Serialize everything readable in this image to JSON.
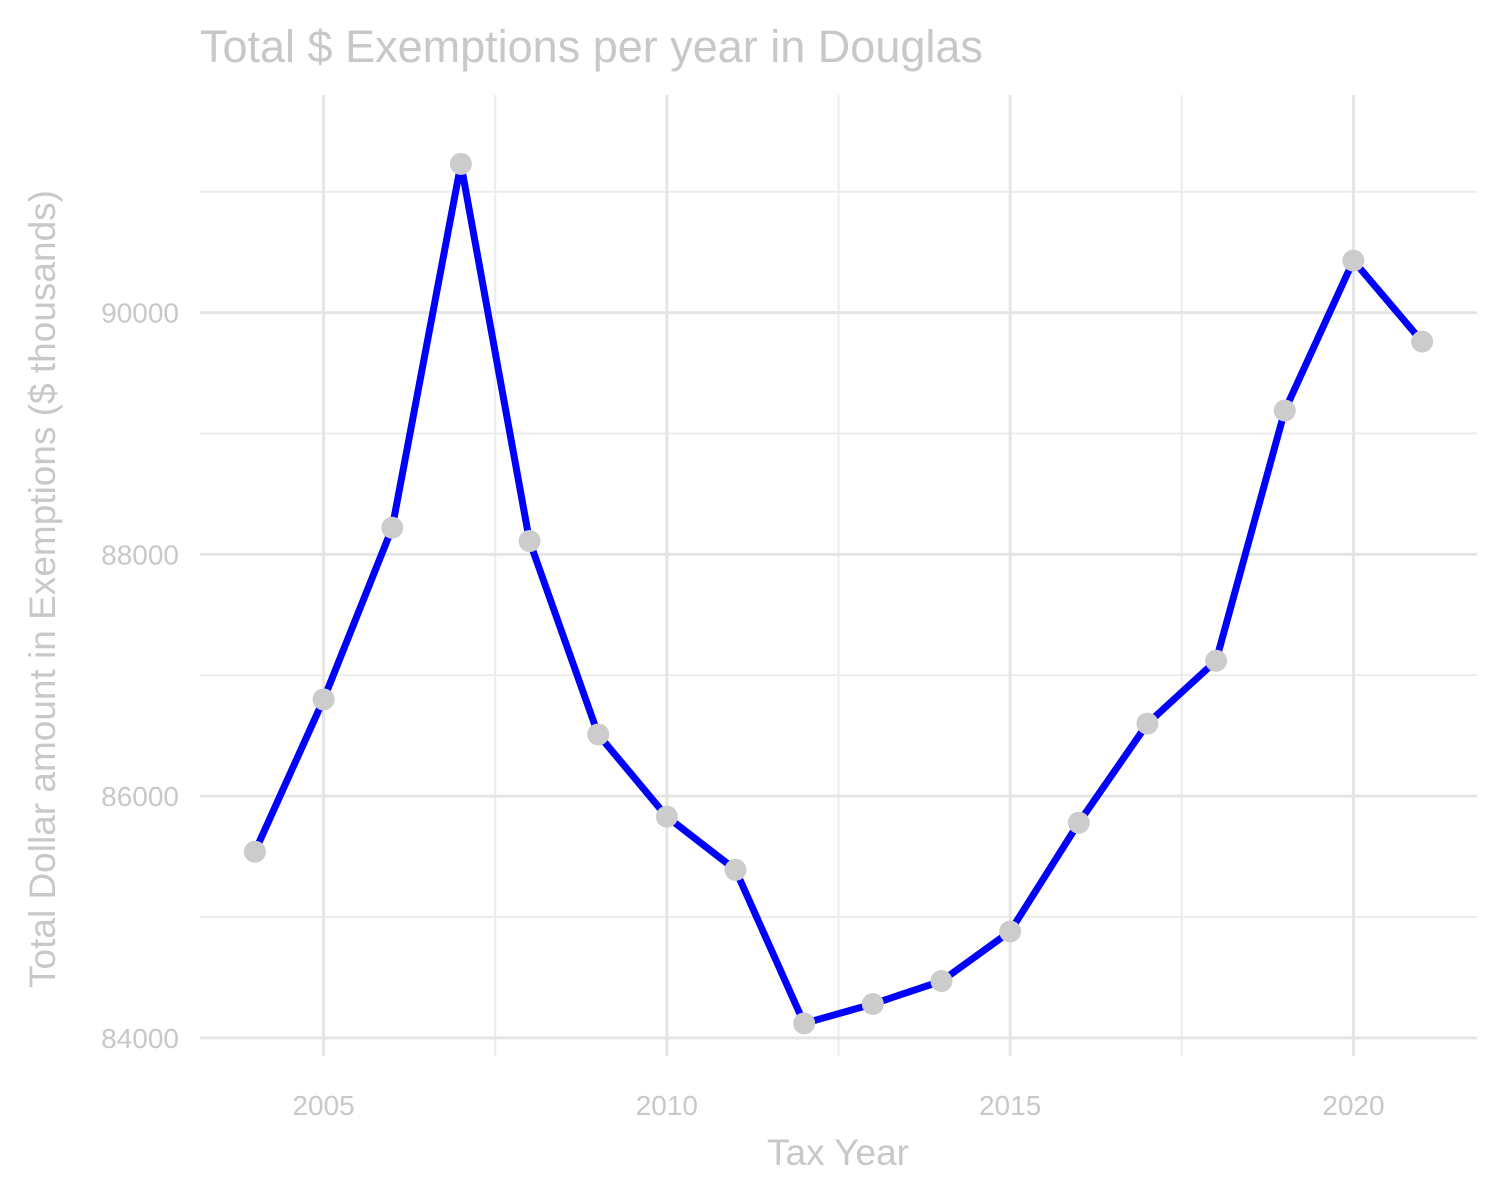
{
  "chart_data": {
    "type": "line",
    "title": "Total $ Exemptions per year in Douglas",
    "xlabel": "Tax Year",
    "ylabel": "Total Dollar amount in Exemptions ($ thousands)",
    "x": [
      2004,
      2005,
      2006,
      2007,
      2008,
      2009,
      2010,
      2011,
      2012,
      2013,
      2014,
      2015,
      2016,
      2017,
      2018,
      2019,
      2020,
      2021
    ],
    "series": [
      {
        "values": [
          85540,
          86800,
          88220,
          91230,
          88110,
          86510,
          85830,
          85390,
          84120,
          84280,
          84470,
          84880,
          85780,
          86600,
          87120,
          89190,
          90430,
          89760
        ]
      }
    ],
    "xlim": [
      2003.2,
      2021.8
    ],
    "ylim": [
      83850,
      91800
    ],
    "x_ticks": [
      2005,
      2010,
      2015,
      2020
    ],
    "x_tick_labels": [
      "2005",
      "2010",
      "2015",
      "2020"
    ],
    "y_ticks": [
      84000,
      86000,
      88000,
      90000
    ],
    "y_tick_labels": [
      "84000",
      "86000",
      "88000",
      "90000"
    ],
    "x_minor_ticks": [
      2007.5,
      2012.5,
      2017.5
    ],
    "y_minor_ticks": [
      85000,
      87000,
      89000,
      91000
    ],
    "grid": true,
    "legend": "none",
    "colors": {
      "line": "#0000ff",
      "points": "#cccccc",
      "text": "#c8c8c8",
      "grid": "#e5e5e5"
    }
  }
}
